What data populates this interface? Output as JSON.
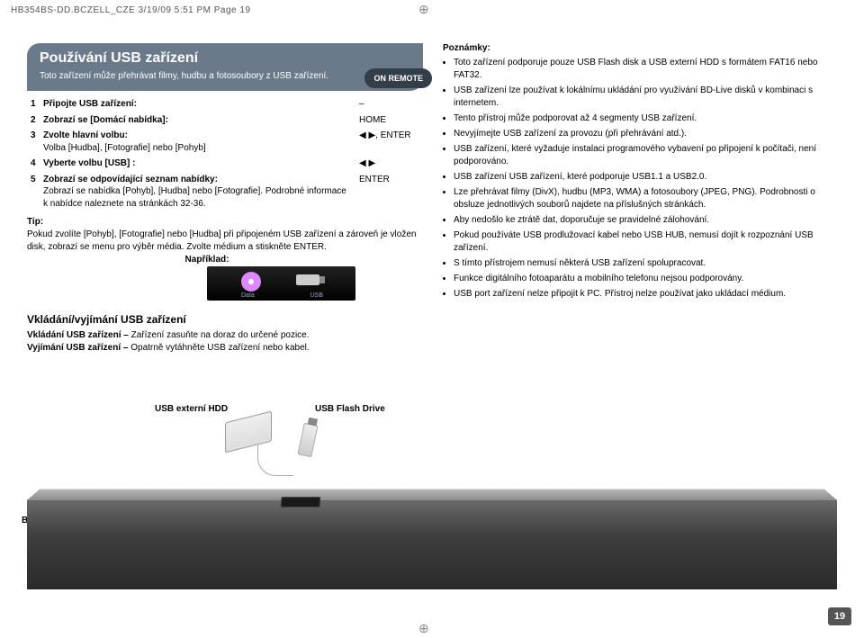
{
  "header": "HB354BS-DD.BCZELL_CZE   3/19/09  5:51 PM  Page 19",
  "title": {
    "main": "Používání USB zařízení",
    "sub": "Toto zařízení může přehrávat filmy, hudbu a fotosoubory z USB zařízení."
  },
  "remote_label": "ON REMOTE",
  "steps": [
    {
      "num": "1",
      "text": "Připojte USB zařízení:",
      "cmd": "–"
    },
    {
      "num": "2",
      "text": "Zobrazí se [Domácí nabídka]:",
      "cmd": "HOME"
    },
    {
      "num": "3",
      "text": "Zvolte hlavní volbu:\nVolba [Hudba], [Fotografie] nebo [Pohyb]",
      "cmd": "◀ ▶, ENTER"
    },
    {
      "num": "4",
      "text": "Vyberte volbu [USB] :",
      "cmd": "◀ ▶"
    },
    {
      "num": "5",
      "text": "Zobrazí se odpovídající seznam nabídky:\nZobrazí se nabídka [Pohyb], [Hudba] nebo [Fotografie]. Podrobné informace k nabídce naleznete na stránkách 32-36.",
      "cmd": "ENTER"
    }
  ],
  "tip": {
    "label": "Tip:",
    "text": "Pokud zvolíte [Pohyb], [Fotografie] nebo [Hudba] při připojeném USB zařízení a zároveň je vložen disk, zobrazí se menu pro výběr média. Zvolte médium a stiskněte ENTER.",
    "example": "Například:"
  },
  "example_labels": {
    "l1": "Data",
    "l2": "USB"
  },
  "section": {
    "h": "Vkládání/vyjímání USB zařízení",
    "b1_bold": "Vkládání USB zařízení –",
    "b1": " Zařízení zasuňte na doraz do určené pozice.",
    "b2_bold": "Vyjímání USB zařízení –",
    "b2": " Opatrně vytáhněte USB zařízení nebo kabel."
  },
  "notes": {
    "h": "Poznámky:",
    "items": [
      "Toto zařízení podporuje pouze USB Flash disk a USB externí HDD s formátem FAT16 nebo FAT32.",
      "USB zařízení lze používat k lokálnímu ukládání pro využívání BD-Live disků v kombinaci s internetem.",
      "Tento přístroj může podporovat až 4 segmenty USB zařízení.",
      "Nevyjímejte USB zařízení za provozu (při přehrávání atd.).",
      "USB zařízení, které vyžaduje instalaci programového vybavení po připojení k počítači, není podporováno.",
      "USB zařízení USB zařízení, které podporuje USB1.1 a USB2.0.",
      "Lze přehrávat filmy (DivX), hudbu (MP3, WMA) a fotosoubory (JPEG, PNG). Podrobnosti o obsluze jednotlivých souborů najdete na příslušných stránkách.",
      "Aby nedošlo ke ztrátě dat, doporučuje se pravidelné zálohování.",
      "Pokud používáte USB prodlužovací kabel nebo USB HUB, nemusí dojít k rozpoznání USB zařízení.",
      "S tímto přístrojem nemusí některá USB zařízení spolupracovat.",
      "Funkce digitálního fotoaparátu a mobilního telefonu nejsou podporovány.",
      "USB port zařízení nelze připojit k PC. Přístroj nelze používat jako ukládací médium."
    ]
  },
  "labels": {
    "ext_hdd": "USB externí HDD",
    "flash": "USB Flash Drive",
    "bd": "BD přehrávač"
  },
  "page_num": "19"
}
